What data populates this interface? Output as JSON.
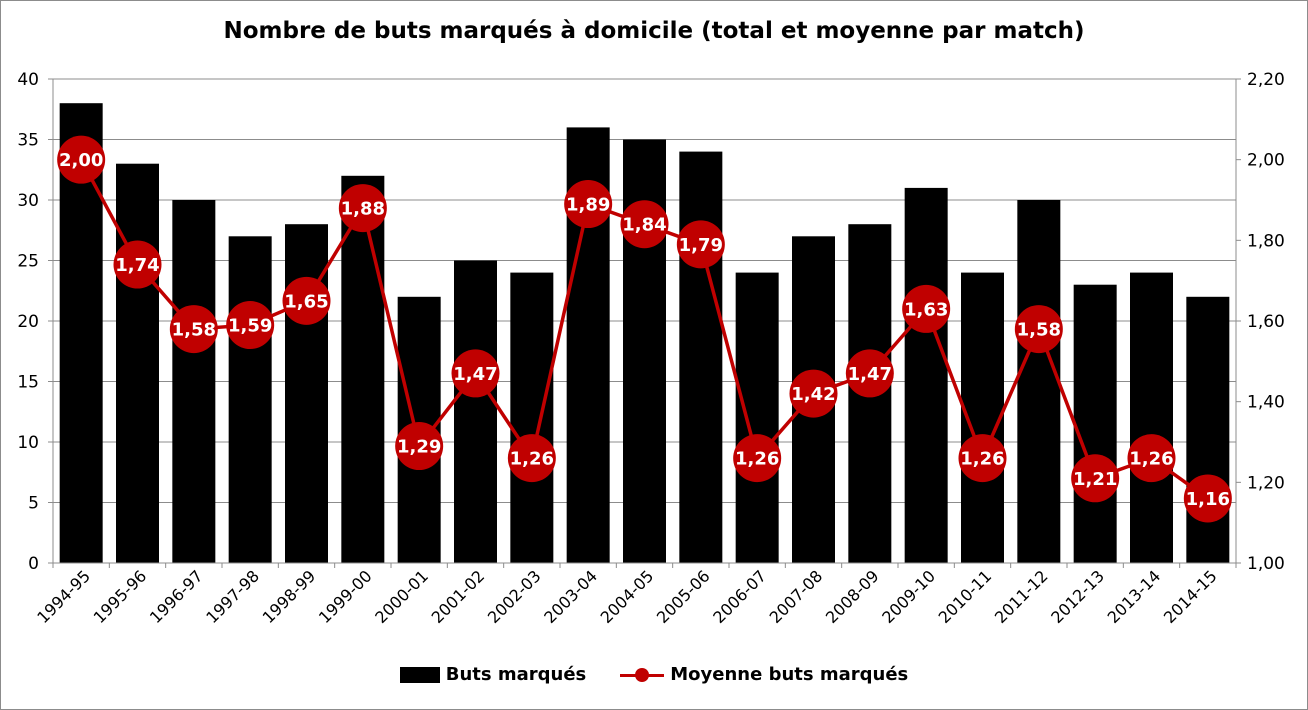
{
  "chart_data": {
    "type": "bar+line",
    "title": "Nombre de buts marqués à domicile (total et moyenne par match)",
    "categories": [
      "1994-95",
      "1995-96",
      "1996-97",
      "1997-98",
      "1998-99",
      "1999-00",
      "2000-01",
      "2001-02",
      "2002-03",
      "2003-04",
      "2004-05",
      "2005-06",
      "2006-07",
      "2007-08",
      "2008-09",
      "2009-10",
      "2010-11",
      "2011-12",
      "2012-13",
      "2013-14",
      "2014-15"
    ],
    "series": [
      {
        "name": "Buts marqués",
        "type": "bar",
        "axis": "left",
        "color": "#000000",
        "values": [
          38,
          33,
          30,
          27,
          28,
          32,
          22,
          25,
          24,
          36,
          35,
          34,
          24,
          27,
          28,
          31,
          24,
          30,
          23,
          24,
          22
        ]
      },
      {
        "name": "Moyenne buts marqués",
        "type": "line",
        "axis": "right",
        "color": "#c00000",
        "values": [
          2.0,
          1.74,
          1.58,
          1.59,
          1.65,
          1.88,
          1.29,
          1.47,
          1.26,
          1.89,
          1.84,
          1.79,
          1.26,
          1.42,
          1.47,
          1.63,
          1.26,
          1.58,
          1.21,
          1.26,
          1.16
        ],
        "labels": [
          "2,00",
          "1,74",
          "1,58",
          "1,59",
          "1,65",
          "1,88",
          "1,29",
          "1,47",
          "1,26",
          "1,89",
          "1,84",
          "1,79",
          "1,26",
          "1,42",
          "1,47",
          "1,63",
          "1,26",
          "1,58",
          "1,21",
          "1,26",
          "1,16"
        ]
      }
    ],
    "y_left": {
      "min": 0,
      "max": 40,
      "ticks": [
        "0",
        "5",
        "10",
        "15",
        "20",
        "25",
        "30",
        "35",
        "40"
      ]
    },
    "y_right": {
      "min": 1.0,
      "max": 2.2,
      "ticks": [
        "1,00",
        "1,20",
        "1,40",
        "1,60",
        "1,80",
        "2,00",
        "2,20"
      ]
    },
    "grid": true,
    "legend_position": "bottom"
  }
}
